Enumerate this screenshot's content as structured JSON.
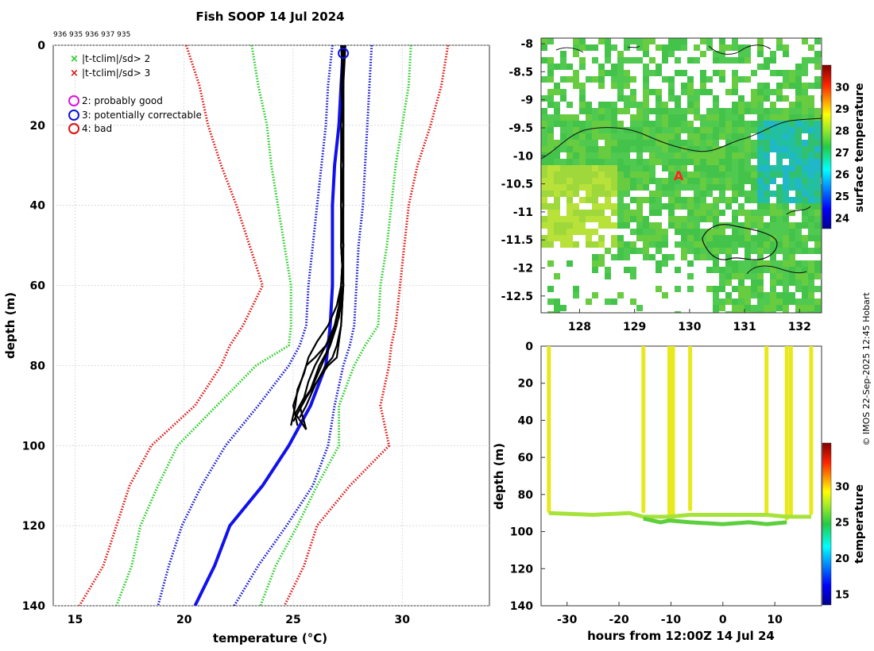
{
  "figure": {
    "title": "Fish SOOP 14 Jul 2024",
    "station_ids": "936 935 936 937 935",
    "credit": "© IMOS 22-Sep-2025 12:45 Hobart"
  },
  "chart_data": [
    {
      "id": "profile",
      "type": "line",
      "xlabel": "temperature (°C)",
      "ylabel": "depth (m)",
      "xlim": [
        14,
        34
      ],
      "ylim": [
        140,
        0
      ],
      "xticks": [
        15,
        20,
        25,
        30
      ],
      "yticks": [
        0,
        20,
        40,
        60,
        80,
        100,
        120,
        140
      ],
      "legend": [
        {
          "marker": "x",
          "color": "#22cc22",
          "label": "|t-tclim|/sd> 2"
        },
        {
          "marker": "x",
          "color": "#dd1111",
          "label": "|t-tclim|/sd> 3"
        },
        {
          "marker": "o",
          "color": "#dd11dd",
          "label": "2: probably good"
        },
        {
          "marker": "o",
          "color": "#1111dd",
          "label": "3: potentially correctable"
        },
        {
          "marker": "o",
          "color": "#dd1111",
          "label": "4: bad"
        }
      ],
      "climatology": {
        "depths": [
          0,
          10,
          20,
          30,
          40,
          50,
          60,
          70,
          75,
          80,
          90,
          100,
          110,
          120,
          130,
          140
        ],
        "mean": [
          27.3,
          27.2,
          27.1,
          26.9,
          26.8,
          26.8,
          26.8,
          26.7,
          26.6,
          26.5,
          25.8,
          24.8,
          23.6,
          22.1,
          21.4,
          20.5
        ],
        "sd1_low": [
          26.8,
          26.6,
          26.5,
          26.3,
          26.1,
          25.9,
          25.7,
          25.6,
          25.3,
          24.8,
          23.4,
          21.9,
          20.8,
          19.9,
          19.3,
          18.8
        ],
        "sd1_high": [
          28.6,
          28.5,
          28.4,
          28.3,
          28.2,
          28.0,
          27.9,
          27.8,
          27.6,
          27.3,
          26.9,
          26.6,
          25.9,
          24.7,
          23.4,
          22.3
        ],
        "sd2_low": [
          23.1,
          23.4,
          23.8,
          24.0,
          24.3,
          24.6,
          24.9,
          24.9,
          24.8,
          23.3,
          21.5,
          19.7,
          18.8,
          18.0,
          17.6,
          16.9
        ],
        "sd2_high": [
          30.4,
          30.3,
          30.0,
          29.7,
          29.5,
          29.3,
          29.0,
          28.9,
          28.3,
          27.8,
          27.1,
          27.1,
          26.1,
          25.2,
          24.2,
          23.5
        ],
        "sd3_low": [
          20.1,
          20.7,
          21.1,
          21.7,
          22.4,
          23.0,
          23.6,
          22.7,
          22.1,
          21.7,
          20.5,
          18.5,
          17.5,
          16.9,
          16.3,
          15.2
        ],
        "sd3_high": [
          32.1,
          31.8,
          31.3,
          30.7,
          30.3,
          30.1,
          29.9,
          29.7,
          29.5,
          29.4,
          29.0,
          29.4,
          27.6,
          26.1,
          25.5,
          24.6
        ]
      },
      "profiles": [
        {
          "depths": [
            0,
            10,
            20,
            30,
            40,
            50,
            60,
            65,
            70,
            75,
            78,
            80,
            85,
            90,
            95
          ],
          "temps": [
            27.3,
            27.3,
            27.3,
            27.2,
            27.2,
            27.3,
            27.2,
            27.1,
            26.9,
            26.5,
            26.0,
            25.6,
            25.3,
            25.0,
            25.2
          ]
        },
        {
          "depths": [
            0,
            10,
            20,
            30,
            40,
            50,
            60,
            65,
            70,
            75,
            80,
            85,
            90,
            94
          ],
          "temps": [
            27.2,
            27.3,
            27.2,
            27.2,
            27.3,
            27.3,
            27.2,
            27.2,
            27.0,
            26.7,
            26.3,
            25.9,
            25.4,
            25.0
          ]
        },
        {
          "depths": [
            0,
            10,
            20,
            30,
            40,
            50,
            60,
            68,
            72,
            76,
            80,
            84,
            88,
            92,
            96
          ],
          "temps": [
            27.4,
            27.3,
            27.3,
            27.3,
            27.2,
            27.2,
            27.3,
            27.1,
            26.8,
            26.4,
            26.0,
            25.7,
            25.5,
            25.1,
            25.6
          ]
        },
        {
          "depths": [
            0,
            10,
            20,
            30,
            40,
            50,
            60,
            70,
            75,
            78,
            80,
            85,
            90,
            93
          ],
          "temps": [
            27.3,
            27.2,
            27.3,
            27.3,
            27.3,
            27.2,
            27.3,
            27.2,
            27.0,
            26.8,
            26.5,
            26.0,
            25.6,
            25.3
          ]
        },
        {
          "depths": [
            0,
            10,
            20,
            30,
            40,
            50,
            60,
            65,
            70,
            74,
            78,
            82,
            86,
            90,
            95
          ],
          "temps": [
            27.2,
            27.3,
            27.3,
            27.2,
            27.2,
            27.3,
            27.2,
            27.0,
            26.6,
            26.1,
            25.7,
            25.5,
            25.2,
            25.1,
            24.9
          ]
        },
        {
          "depths": [
            0,
            10,
            20,
            30,
            40,
            50,
            60,
            66,
            70,
            76,
            80,
            86,
            90,
            96
          ],
          "temps": [
            27.3,
            27.3,
            27.2,
            27.3,
            27.3,
            27.2,
            27.3,
            27.1,
            26.9,
            26.6,
            26.2,
            25.8,
            25.3,
            25.6
          ]
        },
        {
          "depths": [
            0,
            10,
            20,
            30,
            40,
            50,
            60,
            70,
            78,
            80,
            84,
            88,
            92
          ],
          "temps": [
            27.3,
            27.3,
            27.3,
            27.3,
            27.2,
            27.3,
            27.3,
            27.2,
            27.0,
            26.6,
            26.1,
            25.6,
            25.2
          ]
        }
      ],
      "profile_start": {
        "temp": 27.3,
        "depth": 2
      }
    },
    {
      "id": "map",
      "type": "heatmap",
      "xlim": [
        127.3,
        132.4
      ],
      "ylim": [
        -12.8,
        -7.9
      ],
      "xticks": [
        128,
        129,
        130,
        131,
        132
      ],
      "yticks": [
        -8,
        -8.5,
        -9,
        -9.5,
        -10,
        -10.5,
        -11,
        -11.5,
        -12,
        -12.5
      ],
      "ytick_labels": [
        "-8",
        "-8.5",
        "-9",
        "-9.5",
        "-10",
        "-10.5",
        "-11",
        "-11.5",
        "-12",
        "-12.5"
      ],
      "colorbar_label": "surface temperature",
      "colorbar_range": [
        23.5,
        31
      ],
      "colorbar_ticks": [
        24,
        25,
        26,
        27,
        28,
        29,
        30
      ],
      "marker": {
        "label": "A",
        "lon": 129.8,
        "lat": -10.35
      }
    },
    {
      "id": "timeseries",
      "type": "scatter",
      "xlabel": "hours from 12:00Z 14 Jul 24",
      "ylabel": "depth (m)",
      "xlim": [
        -35,
        19
      ],
      "ylim": [
        140,
        0
      ],
      "xticks": [
        -30,
        -20,
        -10,
        0,
        10
      ],
      "yticks": [
        0,
        20,
        40,
        60,
        80,
        100,
        120,
        140
      ],
      "colorbar_label": "temperature",
      "colorbar_range": [
        13.5,
        36
      ],
      "colorbar_ticks": [
        15,
        20,
        25,
        30
      ],
      "cast_hours": [
        -33.5,
        -15.3,
        -10.3,
        -9.6,
        -6.3,
        8.4,
        12.3,
        13.1,
        17.0
      ],
      "cast_max_depth": [
        92,
        92,
        97,
        96,
        91,
        93,
        96,
        94,
        93
      ],
      "bottom_track_upper": {
        "hours": [
          -33.5,
          -25,
          -18,
          -15.3,
          -10.3,
          -6.3,
          0,
          8.4,
          12.3,
          17.0
        ],
        "depths": [
          90,
          91,
          90,
          92,
          92,
          91,
          91,
          91,
          92,
          92
        ]
      },
      "bottom_track_lower": {
        "hours": [
          -15.3,
          -12,
          -10.3,
          -6.3,
          0,
          5,
          8.4,
          12.3
        ],
        "depths": [
          93,
          95,
          94,
          95,
          96,
          95,
          96,
          95
        ]
      }
    }
  ]
}
